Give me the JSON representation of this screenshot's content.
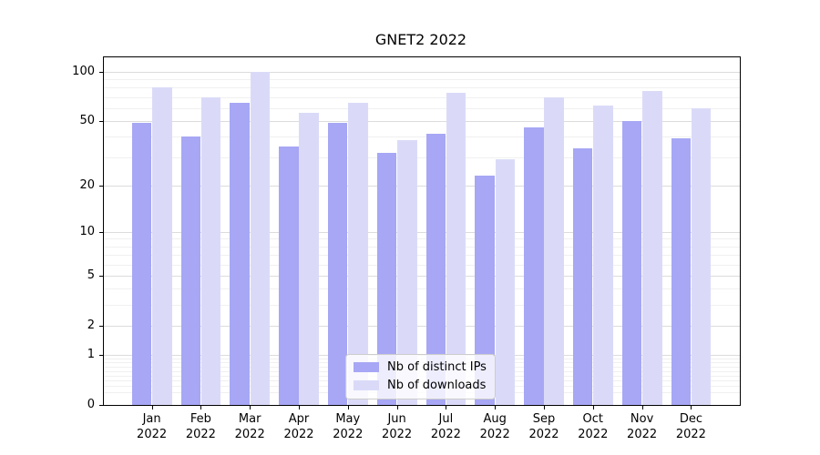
{
  "chart_data": {
    "type": "bar",
    "title": "GNET2 2022",
    "categories": [
      "Jan",
      "Feb",
      "Mar",
      "Apr",
      "May",
      "Jun",
      "Jul",
      "Aug",
      "Sep",
      "Oct",
      "Nov",
      "Dec"
    ],
    "year_label": "2022",
    "series": [
      {
        "name": "Nb of distinct IPs",
        "color": "#a7a7f5",
        "values": [
          49,
          40,
          65,
          35,
          49,
          32,
          42,
          23,
          46,
          34,
          50,
          39
        ]
      },
      {
        "name": "Nb of downloads",
        "color": "#dadaf8",
        "values": [
          80,
          70,
          100,
          56,
          65,
          38,
          75,
          29,
          70,
          62,
          76,
          60
        ]
      }
    ],
    "xlabel": "",
    "ylabel": "",
    "y_scale": "log1p",
    "y_ticks": [
      100,
      50,
      20,
      10,
      5,
      2,
      1,
      0
    ],
    "y_minor_ticks": [
      0.2,
      0.3,
      0.4,
      0.5,
      0.6,
      0.7,
      0.8,
      0.9,
      3,
      4,
      6,
      7,
      8,
      9,
      30,
      40,
      60,
      70,
      80,
      90
    ],
    "ylim": [
      0,
      122
    ],
    "grid": "major+minor horizontal",
    "legend_position": "lower center",
    "colors": {
      "grid_major": "#dcdcdc",
      "grid_minor": "#f0f0f0",
      "axis": "#000000",
      "legend_border": "#cccccc"
    }
  }
}
